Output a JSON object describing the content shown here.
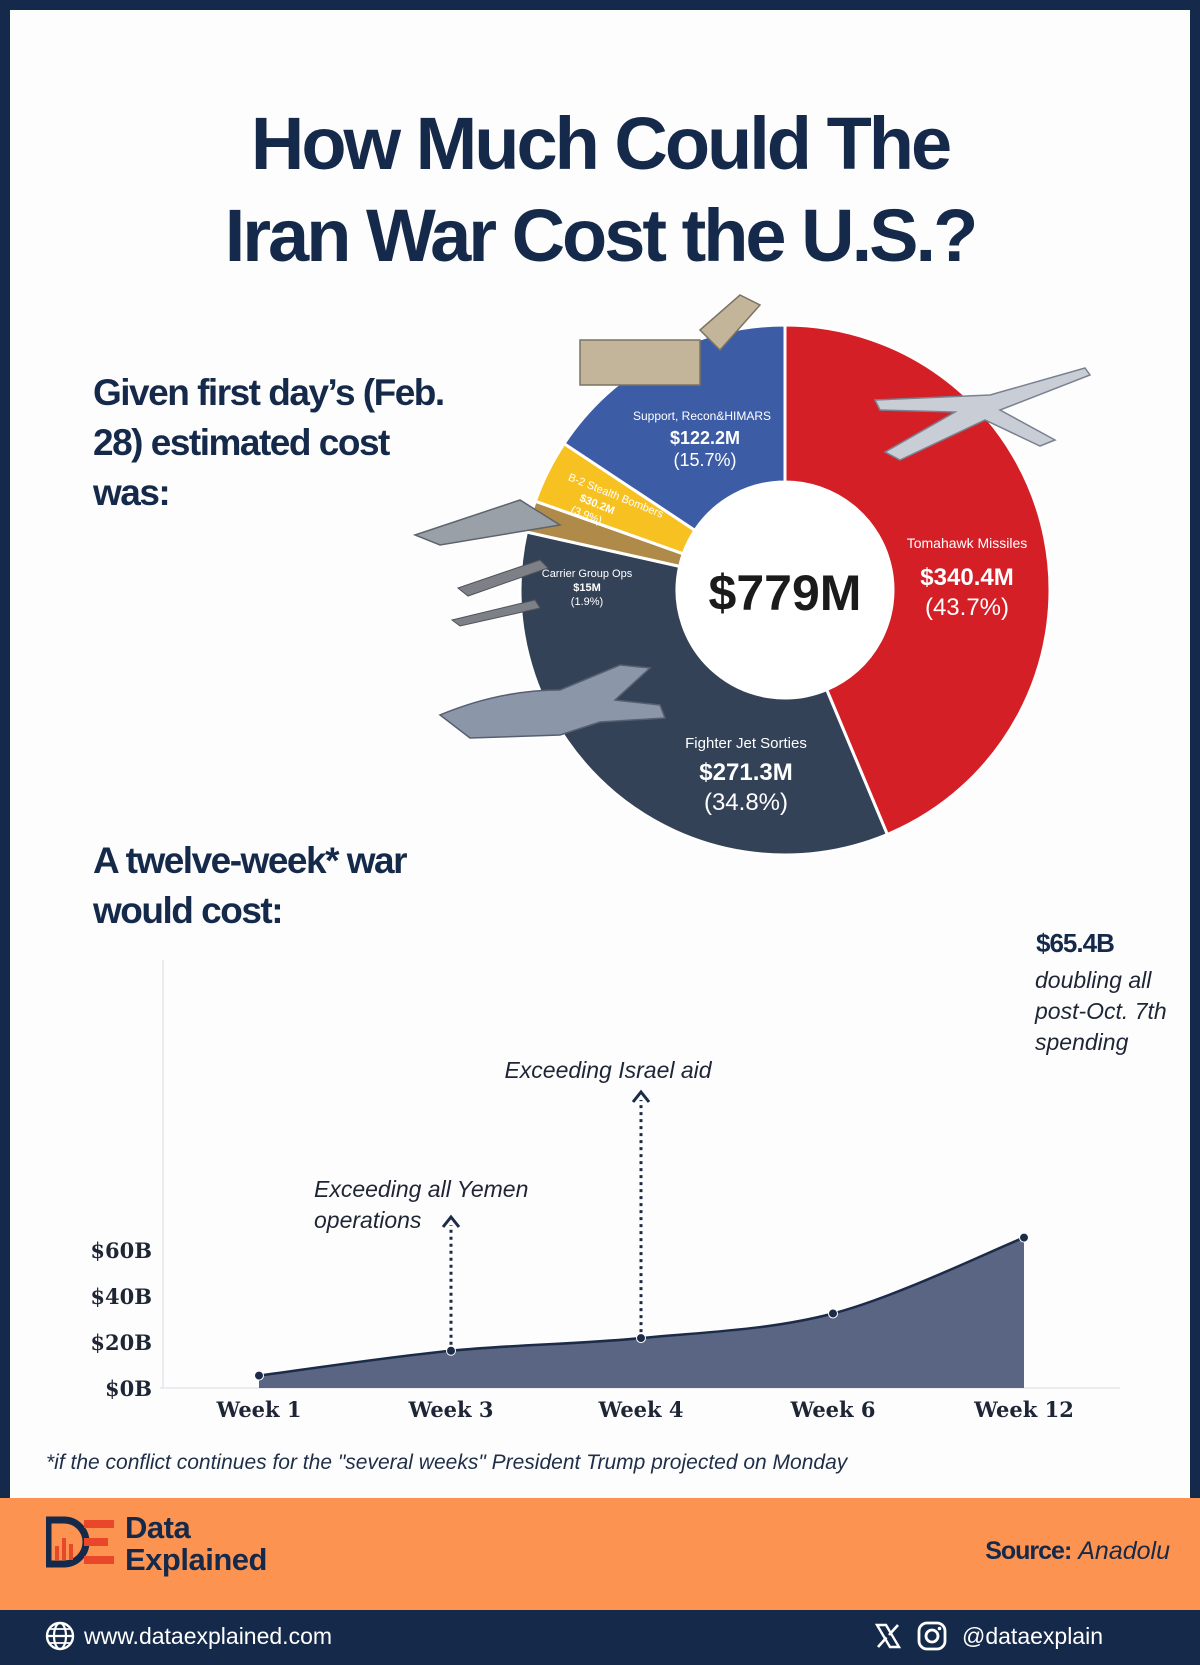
{
  "title": {
    "line1": "How Much Could The",
    "line2": "Iran War Cost the U.S.?"
  },
  "donut_intro": {
    "line1": "Given first day’s (Feb.",
    "line2": "28) estimated cost",
    "line3": "was:"
  },
  "line_intro": {
    "line1": "A twelve-week* war",
    "line2": "would cost:"
  },
  "chart_data": [
    {
      "type": "pie",
      "center_label": "$779M",
      "slices": [
        {
          "label": "Tomahawk Missiles",
          "value": 340.4,
          "value_label": "$340.4M",
          "pct_label": "(43.7%)",
          "color": "#d41f27"
        },
        {
          "label": "Fighter Jet Sorties",
          "value": 271.3,
          "value_label": "$271.3M",
          "pct_label": "(34.8%)",
          "color": "#344258"
        },
        {
          "label": "Carrier Group Ops",
          "value": 15,
          "value_label": "$15M",
          "pct_label": "(1.9%)",
          "color": "#b08a48"
        },
        {
          "label": "B-2 Stealth Bombers",
          "value": 30.2,
          "value_label": "$30.2M",
          "pct_label": "(3.9%)",
          "color": "#f7c221"
        },
        {
          "label": "Support, Recon&HIMARS",
          "value": 122.2,
          "value_label": "$122.2M",
          "pct_label": "(15.7%)",
          "color": "#3d5ca6"
        }
      ]
    },
    {
      "type": "area",
      "categories": [
        "Week 1",
        "Week 3",
        "Week 4",
        "Week 6",
        "Week 12"
      ],
      "values": [
        5.4,
        16.2,
        21.7,
        32.4,
        65.4
      ],
      "yticks": [
        "$0B",
        "$20B",
        "$40B",
        "$60B"
      ],
      "ylim": [
        0,
        60
      ],
      "color": "#5a6584",
      "annotations": [
        {
          "text_lines": [
            "Exceeding all Yemen",
            "operations"
          ]
        },
        {
          "text_lines": [
            "Exceeding Israel aid"
          ]
        },
        {
          "value_label": "$65.4B",
          "text_lines": [
            "doubling all",
            "post-Oct. 7th",
            "spending"
          ]
        }
      ]
    }
  ],
  "footnote": "*if the conflict continues for the \"several weeks\" President Trump projected on Monday",
  "brand": {
    "line1": "Data",
    "line2": "Explained"
  },
  "source": {
    "label": "Source:",
    "value": "Anadolu"
  },
  "footer": {
    "website": "www.dataexplained.com",
    "handle": "@dataexplain"
  }
}
